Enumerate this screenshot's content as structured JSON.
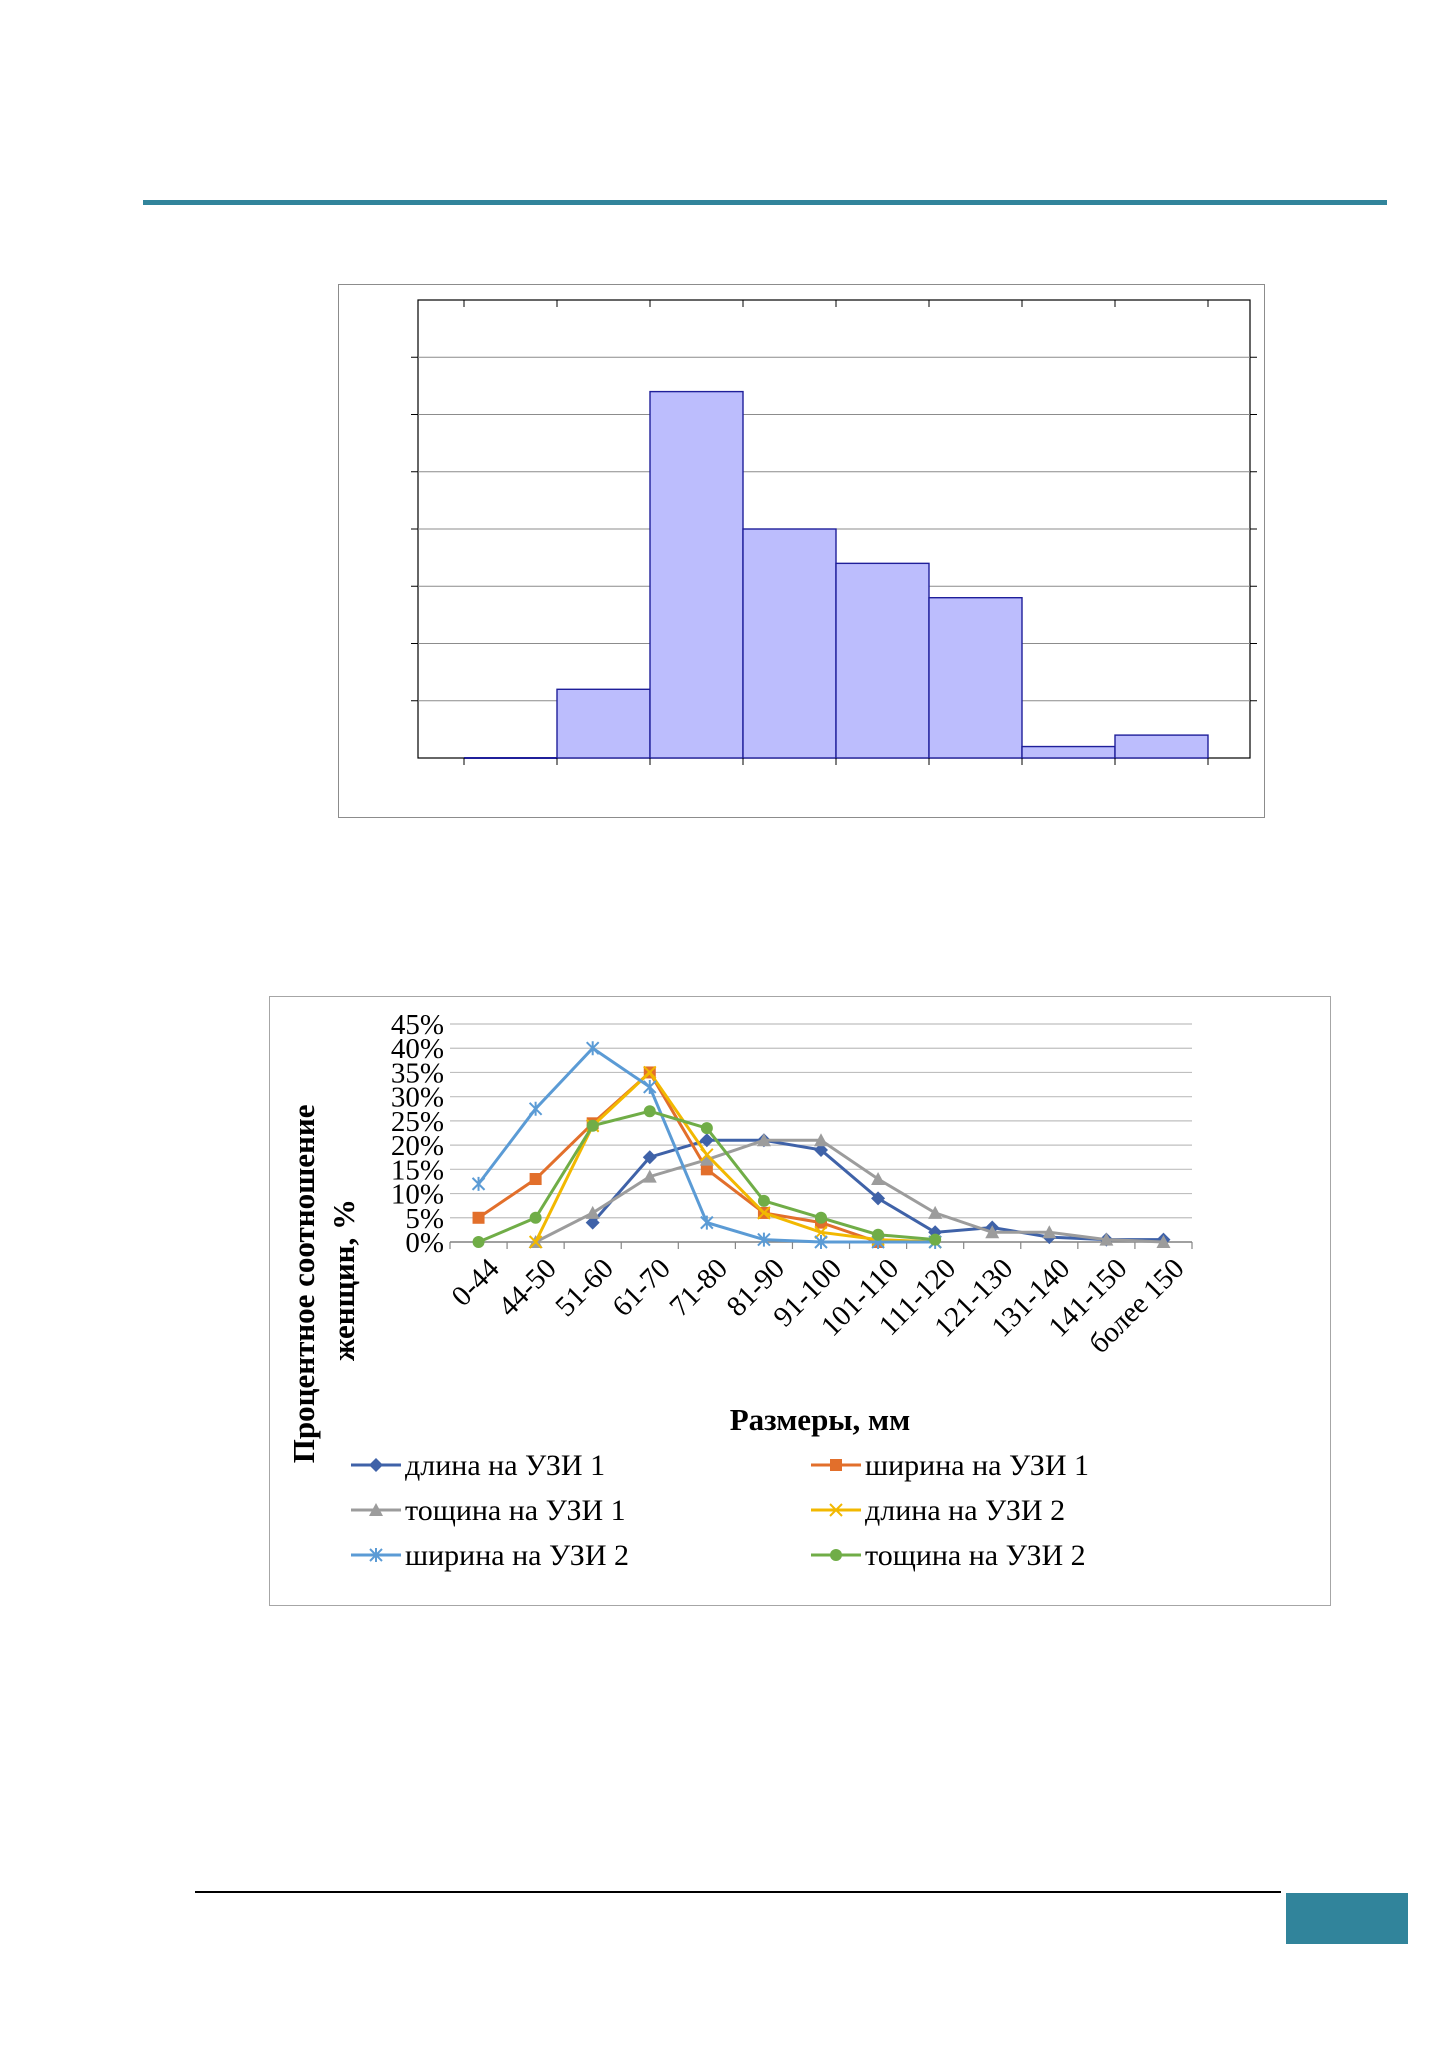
{
  "colors": {
    "accent_rule": "#31849b",
    "histogram_fill": "#bcbdfd",
    "histogram_stroke": "#1f1f9a"
  },
  "chart_data": [
    {
      "type": "bar",
      "categories": [
        "",
        "",
        "",
        "",
        "",
        "",
        "",
        ""
      ],
      "values": [
        0,
        6,
        32,
        20,
        17,
        14,
        1,
        2
      ],
      "ylim": [
        0,
        40
      ],
      "grid": true,
      "tick_labels_visible": false
    },
    {
      "type": "line",
      "categories": [
        "0-44",
        "44-50",
        "51-60",
        "61-70",
        "71-80",
        "81-90",
        "91-100",
        "101-110",
        "111-120",
        "121-130",
        "131-140",
        "141-150",
        "более 150"
      ],
      "ylabel": "Процентное соотношение женщин, %",
      "xlabel": "Размеры, мм",
      "ylim": [
        0,
        45
      ],
      "yticks": [
        "0%",
        "5%",
        "10%",
        "15%",
        "20%",
        "25%",
        "30%",
        "35%",
        "40%",
        "45%"
      ],
      "grid": true,
      "legend_position": "bottom",
      "series": [
        {
          "name": "длина на УЗИ 1",
          "color": "#3f62a8",
          "marker": "diamond",
          "values": [
            null,
            null,
            4,
            17.5,
            21,
            21,
            19,
            9,
            2,
            3,
            1,
            0.5,
            0.5
          ]
        },
        {
          "name": "ширина на УЗИ 1",
          "color": "#e26f2b",
          "marker": "square",
          "values": [
            5,
            13,
            24.5,
            35,
            15,
            6,
            4,
            0,
            null,
            null,
            null,
            null,
            null
          ]
        },
        {
          "name": "тощина на УЗИ 1",
          "color": "#9c9c9c",
          "marker": "triangle",
          "values": [
            null,
            0,
            6,
            13.5,
            17,
            21,
            21,
            13,
            6,
            2,
            2,
            0.5,
            0
          ]
        },
        {
          "name": "длина на УЗИ 2",
          "color": "#f2b800",
          "marker": "x",
          "values": [
            null,
            0,
            24,
            35,
            18,
            6,
            2,
            0.5,
            0,
            null,
            null,
            null,
            null
          ]
        },
        {
          "name": "ширина на УЗИ 2",
          "color": "#5b9bd5",
          "marker": "star",
          "values": [
            12,
            27.5,
            40,
            32,
            4,
            0.5,
            0,
            0,
            0,
            null,
            null,
            null,
            null
          ]
        },
        {
          "name": "тощина на УЗИ 2",
          "color": "#70ad47",
          "marker": "circle",
          "values": [
            0,
            5,
            24,
            27,
            23.5,
            8.5,
            5,
            1.5,
            0.5,
            null,
            null,
            null,
            null
          ]
        }
      ]
    }
  ]
}
